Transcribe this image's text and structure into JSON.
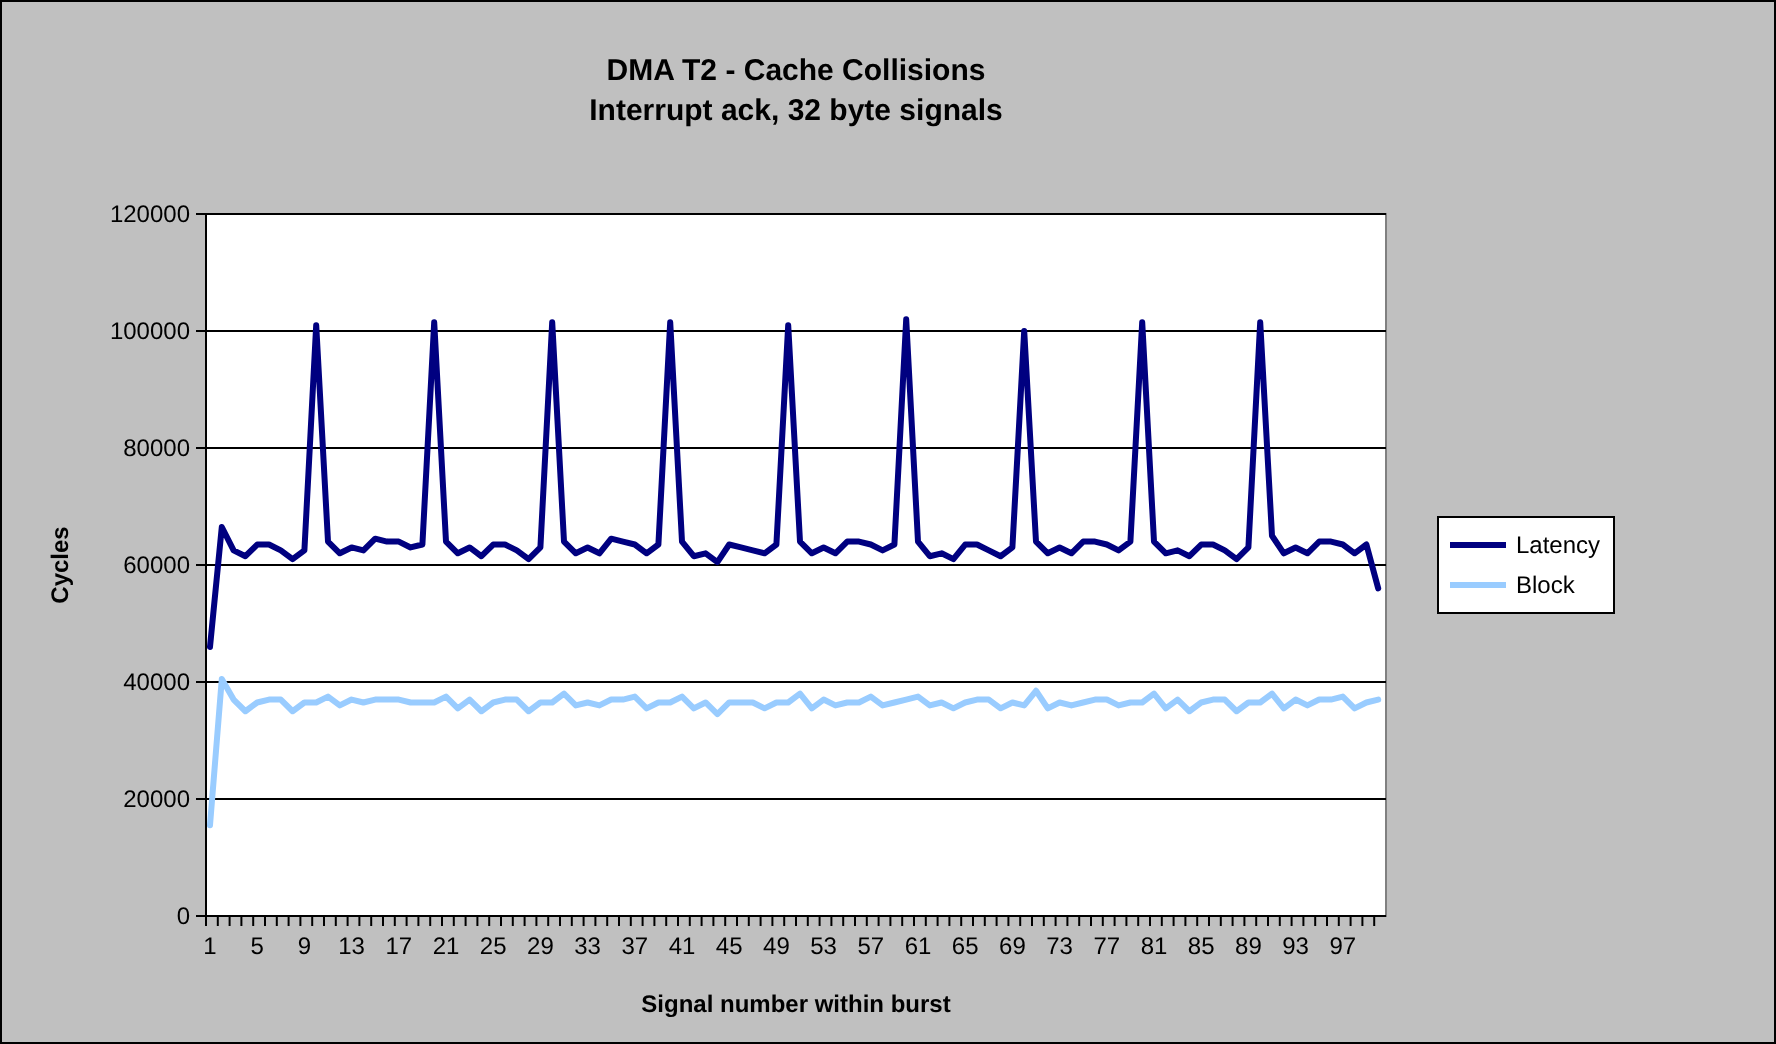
{
  "chart_data": {
    "type": "line",
    "title": "DMA T2 - Cache Collisions",
    "subtitle": "Interrupt ack, 32 byte signals",
    "xlabel": "Signal number within burst",
    "ylabel": "Cycles",
    "categories": [
      "1",
      null,
      null,
      null,
      "5",
      null,
      null,
      null,
      "9",
      null,
      null,
      null,
      "13",
      null,
      null,
      null,
      "17",
      null,
      null,
      null,
      "21",
      null,
      null,
      null,
      "25",
      null,
      null,
      null,
      "29",
      null,
      null,
      null,
      "33",
      null,
      null,
      null,
      "37",
      null,
      null,
      null,
      "41",
      null,
      null,
      null,
      "45",
      null,
      null,
      null,
      "49",
      null,
      null,
      null,
      "53",
      null,
      null,
      null,
      "57",
      null,
      null,
      null,
      "61",
      null,
      null,
      null,
      "65",
      null,
      null,
      null,
      "69",
      null,
      null,
      null,
      "73",
      null,
      null,
      null,
      "77",
      null,
      null,
      null,
      "81",
      null,
      null,
      null,
      "85",
      null,
      null,
      null,
      "89",
      null,
      null,
      null,
      "93",
      null,
      null,
      null,
      "97",
      null,
      null,
      null
    ],
    "series": [
      {
        "name": "Latency",
        "color": "#000080",
        "values": [
          46000,
          66500,
          62500,
          61500,
          63500,
          63500,
          62500,
          61000,
          62500,
          101000,
          64000,
          62000,
          63000,
          62500,
          64500,
          64000,
          64000,
          63000,
          63500,
          101500,
          64000,
          62000,
          63000,
          61500,
          63500,
          63500,
          62500,
          61000,
          63000,
          101500,
          64000,
          62000,
          63000,
          62000,
          64500,
          64000,
          63500,
          62000,
          63500,
          101500,
          64000,
          61500,
          62000,
          60500,
          63500,
          63000,
          62500,
          62000,
          63500,
          101000,
          64000,
          62000,
          63000,
          62000,
          64000,
          64000,
          63500,
          62500,
          63500,
          102000,
          64000,
          61500,
          62000,
          61000,
          63500,
          63500,
          62500,
          61500,
          63000,
          100000,
          64000,
          62000,
          63000,
          62000,
          64000,
          64000,
          63500,
          62500,
          64000,
          101500,
          64000,
          62000,
          62500,
          61500,
          63500,
          63500,
          62500,
          61000,
          63000,
          101500,
          65000,
          62000,
          63000,
          62000,
          64000,
          64000,
          63500,
          62000,
          63500,
          56000
        ]
      },
      {
        "name": "Block",
        "color": "#99ccff",
        "values": [
          15500,
          40500,
          37000,
          35000,
          36500,
          37000,
          37000,
          35000,
          36500,
          36500,
          37500,
          36000,
          37000,
          36500,
          37000,
          37000,
          37000,
          36500,
          36500,
          36500,
          37500,
          35500,
          37000,
          35000,
          36500,
          37000,
          37000,
          35000,
          36500,
          36500,
          38000,
          36000,
          36500,
          36000,
          37000,
          37000,
          37500,
          35500,
          36500,
          36500,
          37500,
          35500,
          36500,
          34500,
          36500,
          36500,
          36500,
          35500,
          36500,
          36500,
          38000,
          35500,
          37000,
          36000,
          36500,
          36500,
          37500,
          36000,
          36500,
          37000,
          37500,
          36000,
          36500,
          35500,
          36500,
          37000,
          37000,
          35500,
          36500,
          36000,
          38500,
          35500,
          36500,
          36000,
          36500,
          37000,
          37000,
          36000,
          36500,
          36500,
          38000,
          35500,
          37000,
          35000,
          36500,
          37000,
          37000,
          35000,
          36500,
          36500,
          38000,
          35500,
          37000,
          36000,
          37000,
          37000,
          37500,
          35500,
          36500,
          37000
        ]
      }
    ],
    "ylim": [
      0,
      120000
    ],
    "yticks": [
      0,
      20000,
      40000,
      60000,
      80000,
      100000,
      120000
    ],
    "grid": "y",
    "legend": "right",
    "marker": "none",
    "line_style": "solid"
  }
}
